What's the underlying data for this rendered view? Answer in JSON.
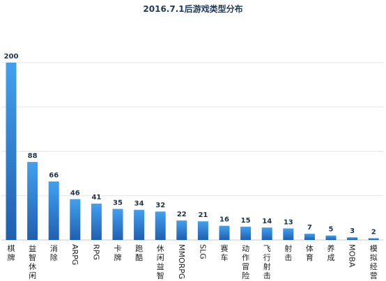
{
  "chart_data": {
    "type": "bar",
    "title": "2016.7.1后游戏类型分布",
    "categories": [
      "棋牌",
      "益智休闲",
      "消除",
      "ARPG",
      "RPG",
      "卡牌",
      "跑酷",
      "休闲益智",
      "MMORPG",
      "SLG",
      "赛车",
      "动作冒险",
      "飞行射击",
      "射击",
      "体育",
      "养成",
      "MOBA",
      "模拟经营"
    ],
    "values": [
      200,
      88,
      66,
      46,
      41,
      35,
      34,
      32,
      22,
      21,
      16,
      15,
      14,
      13,
      7,
      5,
      3,
      2
    ],
    "ylim": [
      0,
      200
    ],
    "grid": true,
    "legend": "none",
    "bar_color_top": "#42a0f0",
    "bar_color_bottom": "#1f5fb0"
  }
}
